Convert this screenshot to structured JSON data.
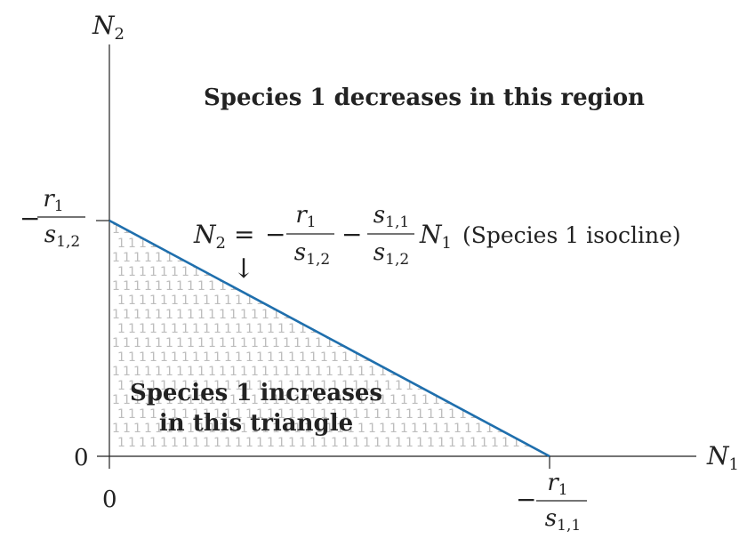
{
  "axes": {
    "x_label": {
      "base": "N",
      "sub": "1"
    },
    "y_label": {
      "base": "N",
      "sub": "2"
    },
    "origin_x_tick": "0",
    "origin_y_tick": "0",
    "y_intercept_label": {
      "sign": "−",
      "num": {
        "base": "r",
        "sub": "1"
      },
      "den": {
        "base": "s",
        "sub": "1,2"
      }
    },
    "x_intercept_label": {
      "sign": "−",
      "num": {
        "base": "r",
        "sub": "1"
      },
      "den": {
        "base": "s",
        "sub": "1,1"
      }
    }
  },
  "isocline": {
    "lhs": {
      "base": "N",
      "sub": "2"
    },
    "equals": "=",
    "minus1": "−",
    "frac1": {
      "num": {
        "base": "r",
        "sub": "1"
      },
      "den": {
        "base": "s",
        "sub": "1,2"
      }
    },
    "minus2": "−",
    "frac2": {
      "num": {
        "base": "s",
        "sub": "1,1"
      },
      "den": {
        "base": "s",
        "sub": "1,2"
      }
    },
    "var": {
      "base": "N",
      "sub": "1"
    },
    "note": "(Species 1 isocline)",
    "arrow": "↓",
    "color": "#1f6fad"
  },
  "regions": {
    "decrease": "Species 1 decreases in this region",
    "increase_line1": "Species 1 increases",
    "increase_line2": "in this triangle",
    "pattern_glyph": "1",
    "pattern_color": "#bdbdbd"
  }
}
